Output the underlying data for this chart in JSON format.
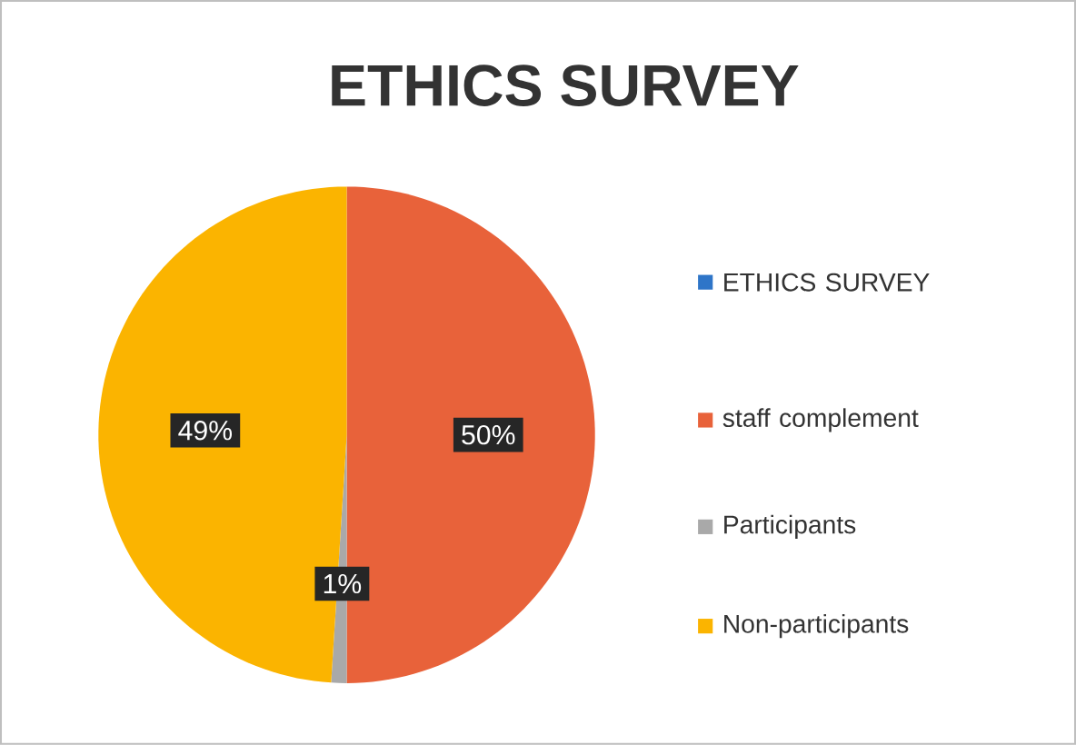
{
  "chart_data": {
    "type": "pie",
    "title": "ETHICS SURVEY",
    "categories": [
      "ETHICS SURVEY",
      "staff complement",
      "Participants",
      "Non-participants"
    ],
    "values": [
      0,
      50,
      1,
      49
    ],
    "colors": [
      "#2e75c8",
      "#e8623a",
      "#a9a9a9",
      "#fbb400"
    ],
    "value_labels": [
      null,
      "50%",
      "1%",
      "49%"
    ],
    "legend": "right"
  }
}
